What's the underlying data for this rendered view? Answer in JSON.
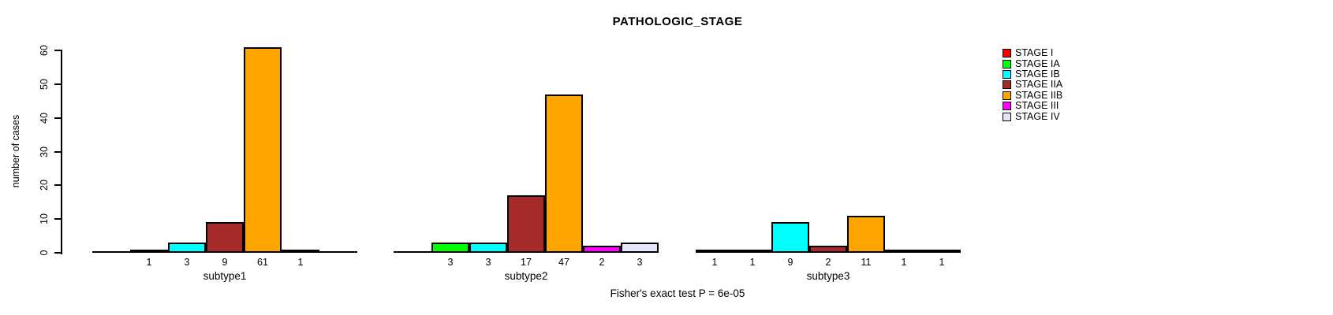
{
  "title": "PATHOLOGIC_STAGE",
  "footer": "Fisher's exact test P = 6e-05",
  "chart_data": {
    "type": "bar",
    "title": "PATHOLOGIC_STAGE",
    "xlabel": "",
    "ylabel": "number of cases",
    "ylim": [
      0,
      60
    ],
    "yticks": [
      0,
      10,
      20,
      30,
      40,
      50,
      60
    ],
    "grid": false,
    "legend_position": "top-right",
    "bar_value_labels": "shown under each bar when value > 0",
    "categories": [
      "subtype1",
      "subtype2",
      "subtype3"
    ],
    "series": [
      {
        "name": "STAGE I",
        "color": "#FF0000",
        "values": [
          0,
          0,
          1
        ]
      },
      {
        "name": "STAGE IA",
        "color": "#00FF00",
        "values": [
          1,
          3,
          1
        ]
      },
      {
        "name": "STAGE IB",
        "color": "#00FFFF",
        "values": [
          3,
          3,
          9
        ]
      },
      {
        "name": "STAGE IIA",
        "color": "#A52A2A",
        "values": [
          9,
          17,
          2
        ]
      },
      {
        "name": "STAGE IIB",
        "color": "#FFA500",
        "values": [
          61,
          47,
          11
        ]
      },
      {
        "name": "STAGE III",
        "color": "#FF00FF",
        "values": [
          1,
          2,
          1
        ]
      },
      {
        "name": "STAGE IV",
        "color": "#E6E6FA",
        "values": [
          0,
          3,
          1
        ]
      }
    ],
    "annotation": "Fisher's exact test P = 6e-05"
  }
}
